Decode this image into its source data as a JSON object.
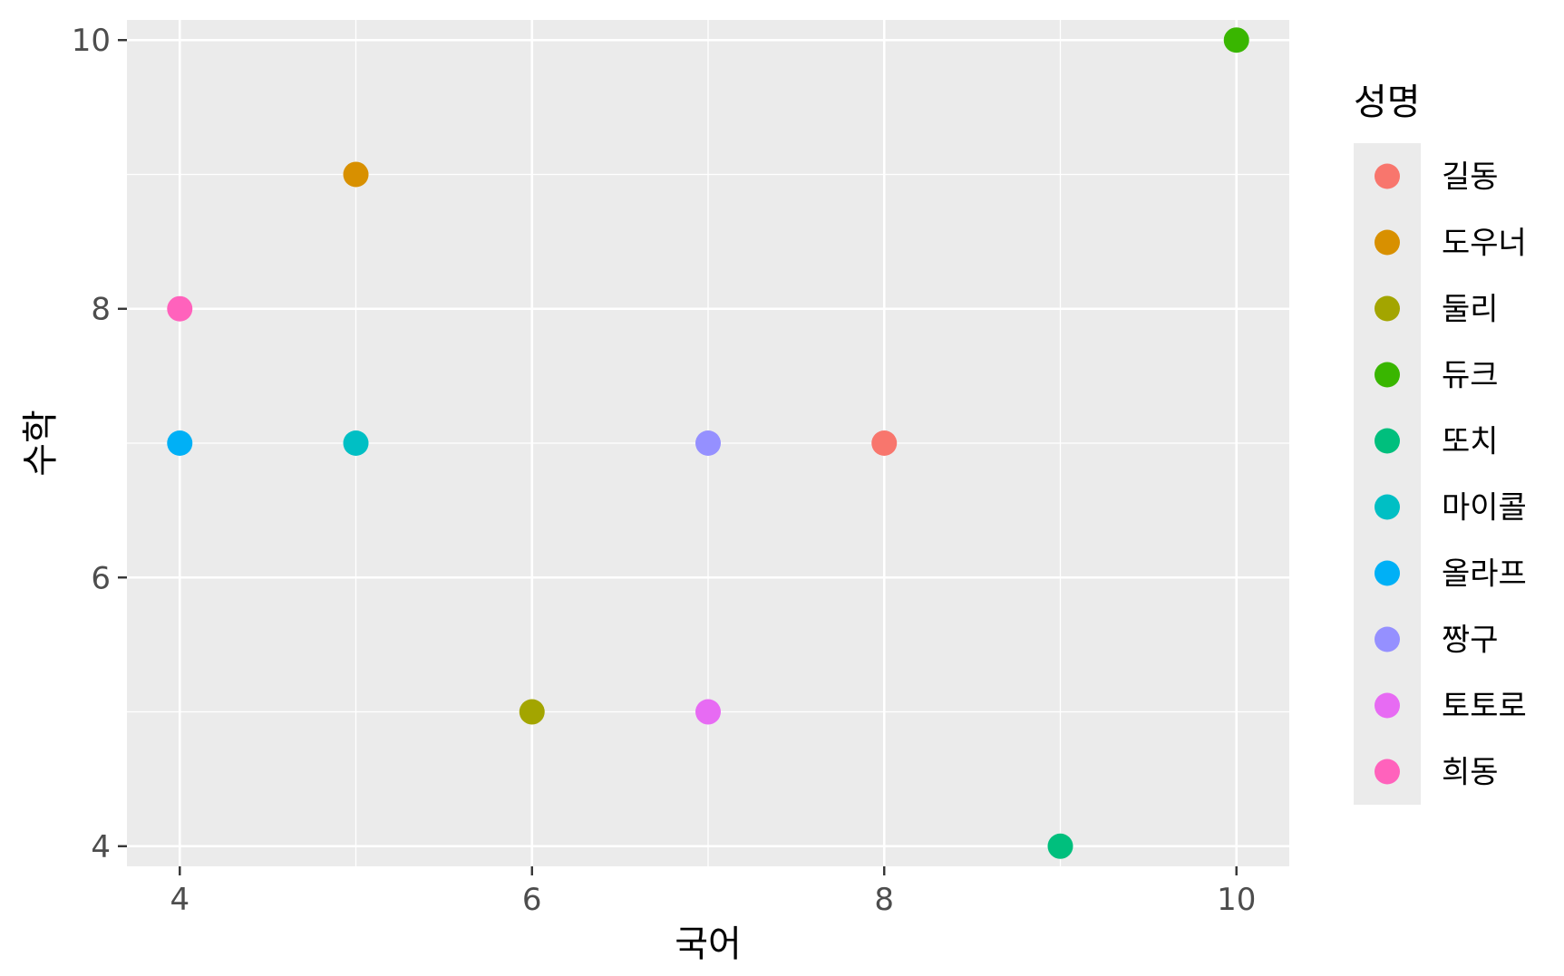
{
  "chart_data": {
    "type": "scatter",
    "xlabel": "국어",
    "ylabel": "수학",
    "xlim": [
      3.7,
      10.3
    ],
    "ylim": [
      3.85,
      10.15
    ],
    "x_ticks": [
      4,
      6,
      8,
      10
    ],
    "y_ticks": [
      4,
      6,
      8,
      10
    ],
    "x_minor": [
      5,
      7,
      9
    ],
    "y_minor": [
      5,
      7,
      9
    ],
    "grid": true,
    "panel_color": "#ebebeb",
    "legend": {
      "title": "성명",
      "position": "right"
    },
    "series": [
      {
        "name": "길동",
        "color": "#F8766D",
        "points": [
          {
            "x": 8,
            "y": 7
          }
        ]
      },
      {
        "name": "도우너",
        "color": "#D89000",
        "points": [
          {
            "x": 5,
            "y": 9
          }
        ]
      },
      {
        "name": "둘리",
        "color": "#A3A500",
        "points": [
          {
            "x": 6,
            "y": 5
          }
        ]
      },
      {
        "name": "듀크",
        "color": "#39B600",
        "points": [
          {
            "x": 10,
            "y": 10
          }
        ]
      },
      {
        "name": "또치",
        "color": "#00BF7D",
        "points": [
          {
            "x": 9,
            "y": 4
          }
        ]
      },
      {
        "name": "마이콜",
        "color": "#00BFC4",
        "points": [
          {
            "x": 5,
            "y": 7
          }
        ]
      },
      {
        "name": "올라프",
        "color": "#00B0F6",
        "points": [
          {
            "x": 4,
            "y": 7
          }
        ]
      },
      {
        "name": "짱구",
        "color": "#9590FF",
        "points": [
          {
            "x": 7,
            "y": 7
          }
        ]
      },
      {
        "name": "토토로",
        "color": "#E76BF3",
        "points": [
          {
            "x": 7,
            "y": 5
          }
        ]
      },
      {
        "name": "희동",
        "color": "#FF62BC",
        "points": [
          {
            "x": 4,
            "y": 8
          }
        ]
      }
    ]
  }
}
